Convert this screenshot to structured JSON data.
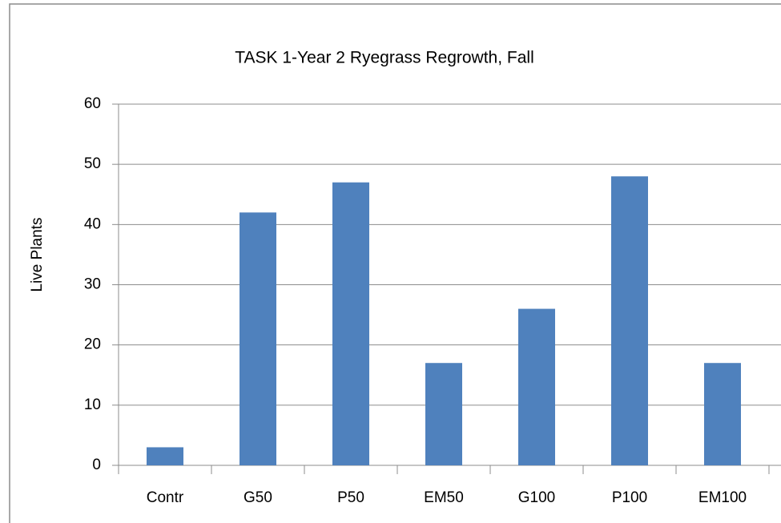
{
  "chart_data": {
    "type": "bar",
    "title": "TASK 1-Year 2 Ryegrass Regrowth, Fall",
    "y_label": "Live Plants",
    "categories": [
      "Contr",
      "G50",
      "P50",
      "EM50",
      "G100",
      "P100",
      "EM100"
    ],
    "values": [
      3,
      42,
      47,
      17,
      26,
      48,
      17
    ],
    "color": "#4f81bd",
    "ylim": [
      0,
      60
    ],
    "yticks": [
      0,
      10,
      20,
      30,
      40,
      50,
      60
    ],
    "grid": true
  }
}
